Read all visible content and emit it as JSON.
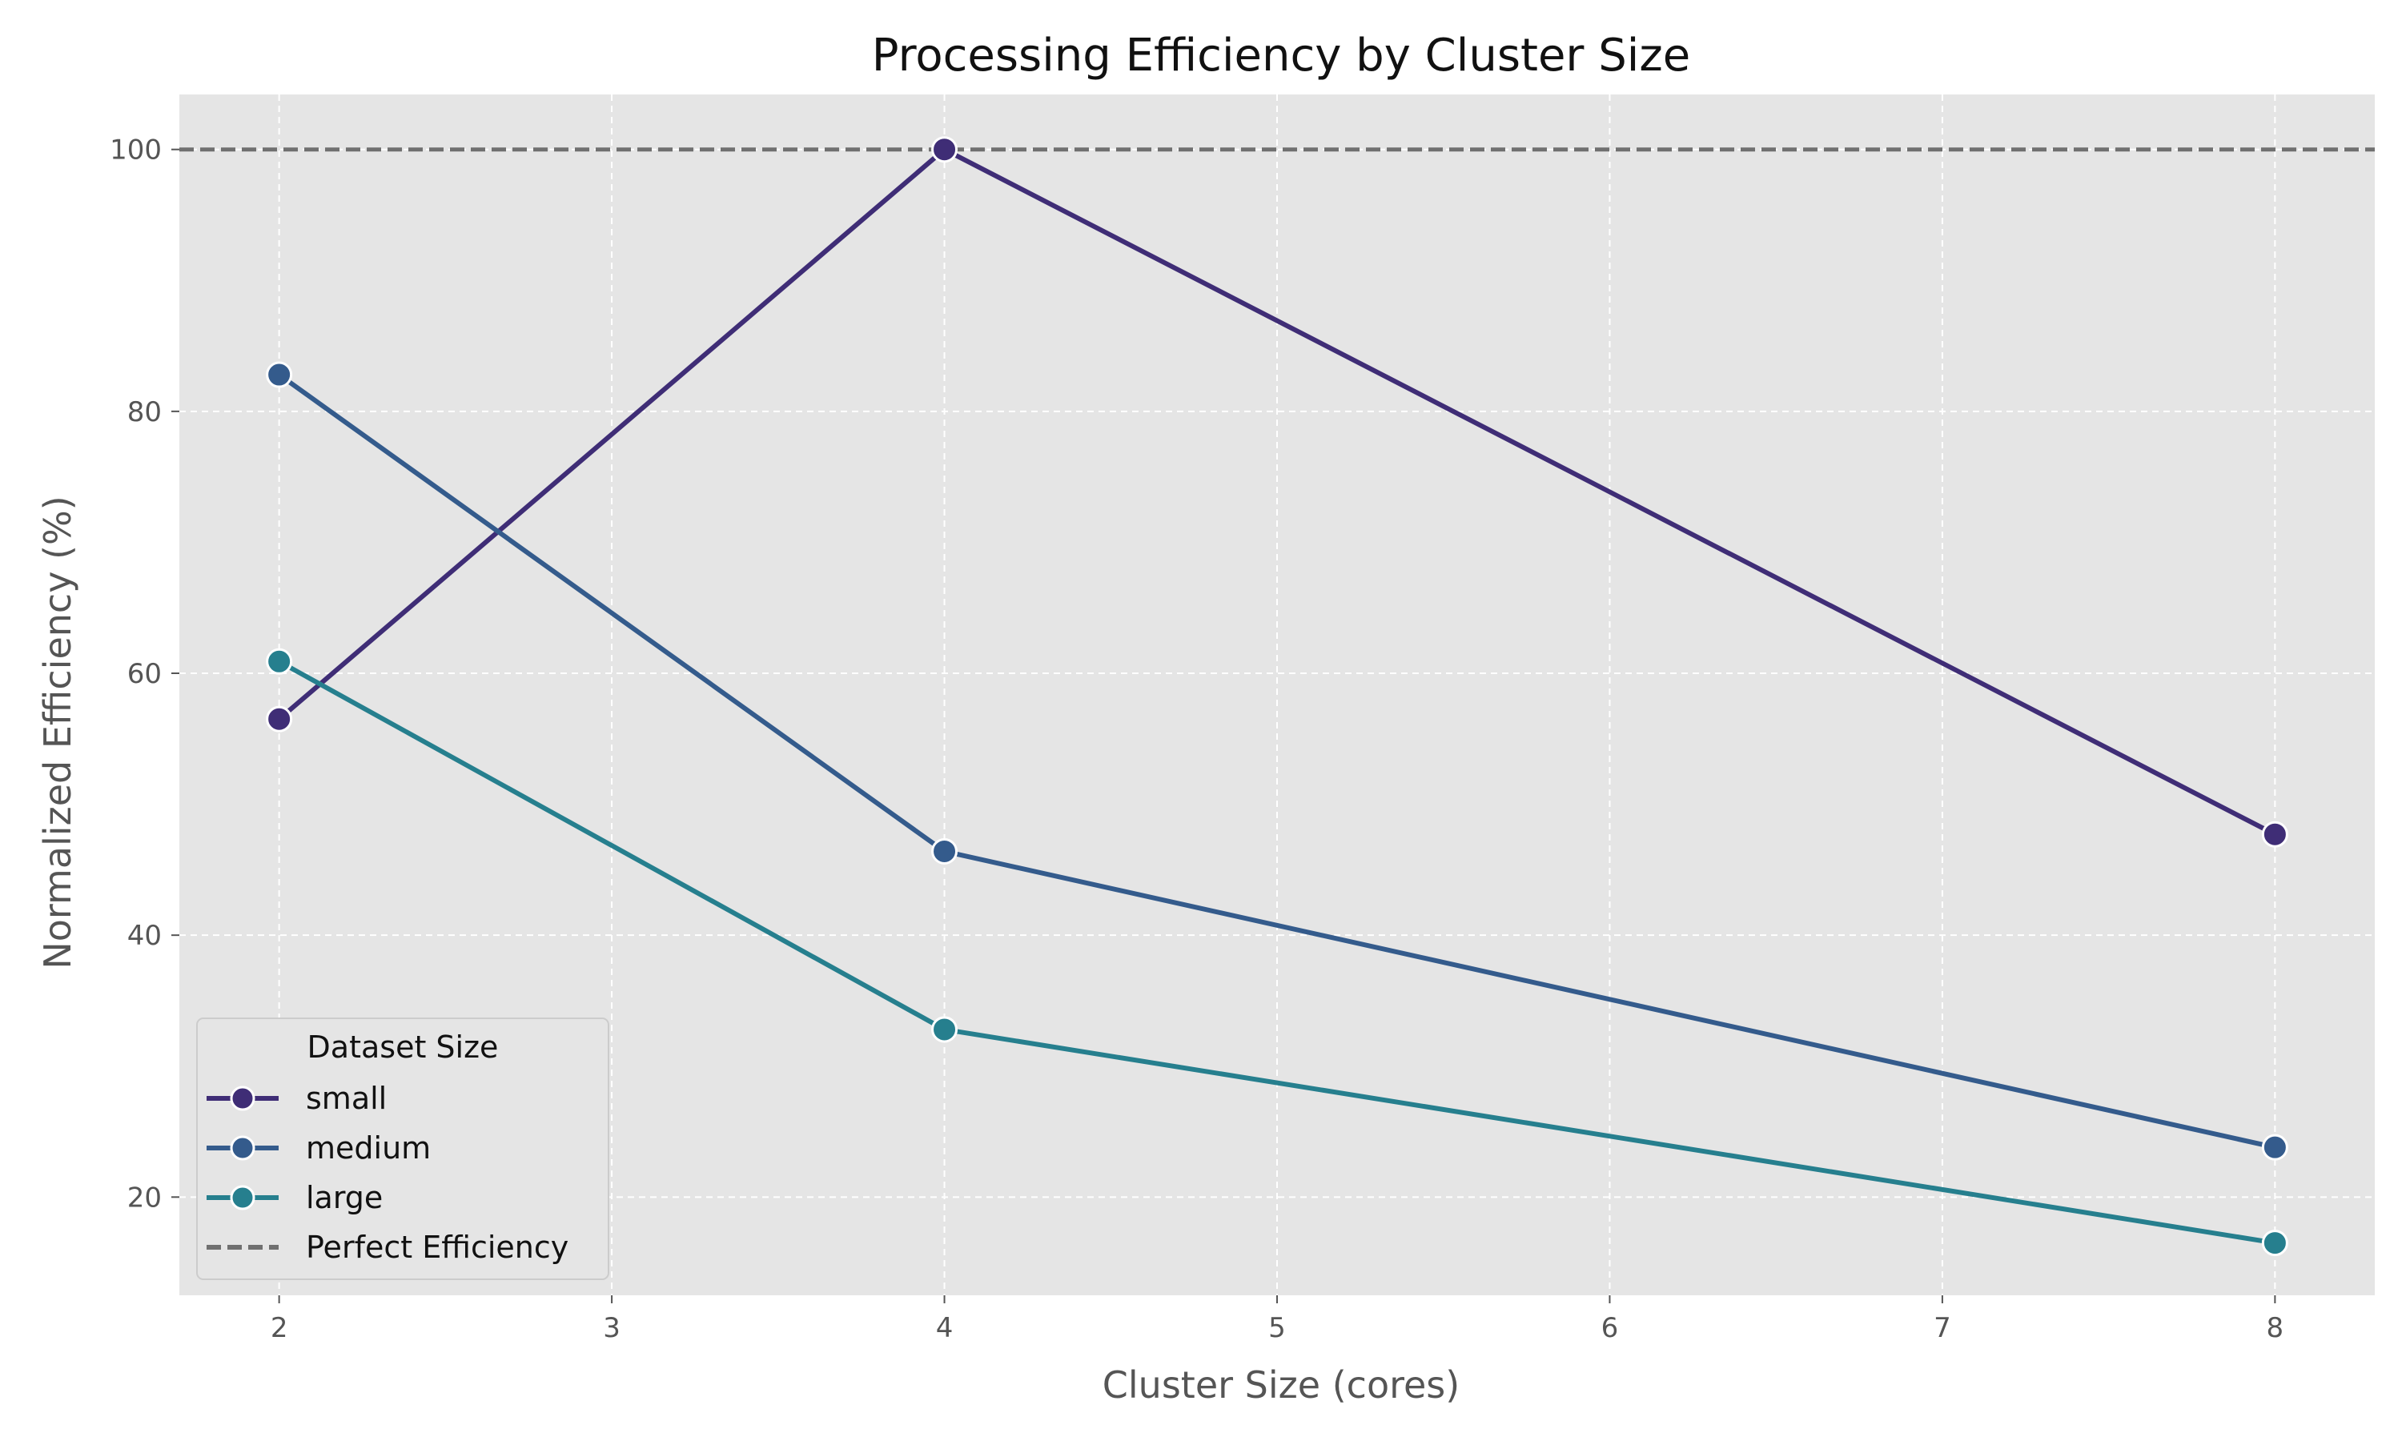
{
  "chart_data": {
    "type": "line",
    "title": "Processing Efficiency by Cluster Size",
    "xlabel": "Cluster Size (cores)",
    "ylabel": "Normalized Efficiency (%)",
    "xlim": [
      1.7,
      8.3
    ],
    "ylim": [
      12.5,
      104.2
    ],
    "xticks": [
      2,
      3,
      4,
      5,
      6,
      7,
      8
    ],
    "yticks": [
      20,
      40,
      60,
      80,
      100
    ],
    "grid": true,
    "legend_title": "Dataset Size",
    "legend_position": "lower-left",
    "x": [
      2,
      4,
      8
    ],
    "series": [
      {
        "name": "small",
        "color": "#3f2d76",
        "values": [
          56.5,
          100.0,
          47.7
        ]
      },
      {
        "name": "medium",
        "color": "#345b8c",
        "values": [
          82.8,
          46.4,
          23.8
        ]
      },
      {
        "name": "large",
        "color": "#267f8e",
        "values": [
          60.9,
          32.8,
          16.5
        ]
      }
    ],
    "reference_line": {
      "name": "Perfect Efficiency",
      "y": 100,
      "color": "#707070",
      "style": "dashed"
    },
    "background_color": "#e5e5e5",
    "grid_color": "#ffffff"
  }
}
